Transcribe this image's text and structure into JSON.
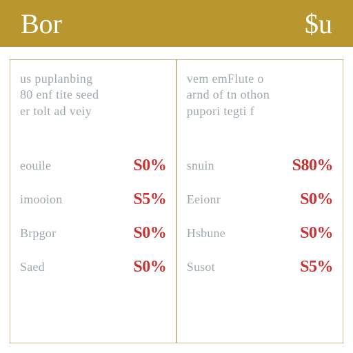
{
  "header": {
    "left": "Bor",
    "right": "$u",
    "bg_color": "#b8972e",
    "text_color": "#ffffff",
    "fontsize": 40
  },
  "panels": {
    "border_color": "#c9b98f",
    "background_color": "#ffffff"
  },
  "left": {
    "intro": "us puplanbing\n80 enf tite seed\ner tolt ad veiy",
    "rows": [
      {
        "label": "eouile",
        "value": "S0%"
      },
      {
        "label": "imooion",
        "value": "S5%"
      },
      {
        "label": "Brpgor",
        "value": "S0%"
      },
      {
        "label": "Saed",
        "value": "S0%"
      }
    ]
  },
  "right": {
    "intro": "vem emFlute o\narnd of tn othon\npupori tegti f",
    "rows": [
      {
        "label": "snuin",
        "value": "S80%"
      },
      {
        "label": "Eeionr",
        "value": "S0%"
      },
      {
        "label": "Hsbune",
        "value": "S0%"
      },
      {
        "label": "Susot",
        "value": "S5%"
      }
    ]
  },
  "styling": {
    "label_color": "#9ea8ad",
    "value_color": "#c83232",
    "intro_fontsize": 18,
    "label_fontsize": 18,
    "value_fontsize": 24,
    "row_gap": 22
  }
}
